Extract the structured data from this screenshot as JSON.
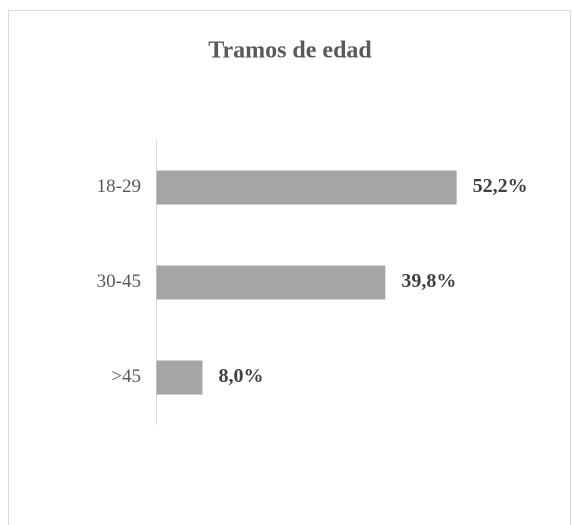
{
  "chart_data": {
    "type": "bar",
    "orientation": "horizontal",
    "title": "Tramos de edad",
    "categories": [
      "18-29",
      "30-45",
      ">45"
    ],
    "values": [
      52.2,
      39.8,
      8.0
    ],
    "value_labels": [
      "52,2%",
      "39,8%",
      "8,0%"
    ],
    "color": "#a5a5a5",
    "xlim": [
      0,
      60
    ]
  }
}
